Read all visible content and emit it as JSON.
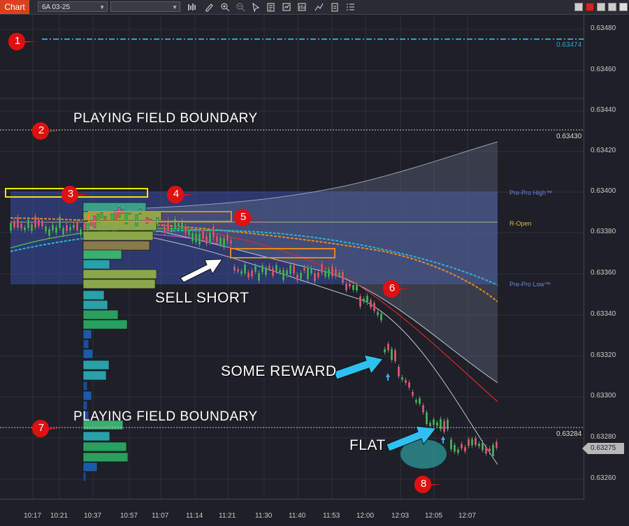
{
  "toolbar": {
    "tab_label": "Chart",
    "instrument": "6A 03-25",
    "template": "",
    "tool_icons": [
      "bar-type-icon",
      "pencil-icon",
      "zoom-in-icon",
      "zoom-out-icon",
      "pointer-icon",
      "data-box-icon",
      "chart-properties-icon",
      "strategies-icon",
      "drawing-objects-icon",
      "templates-icon",
      "list-icon"
    ]
  },
  "y_axis": {
    "labels": [
      "0.63480",
      "0.63460",
      "0.63440",
      "0.63420",
      "0.63400",
      "0.63380",
      "0.63360",
      "0.63340",
      "0.63320",
      "0.63300",
      "0.63280",
      "0.63260"
    ]
  },
  "x_axis": {
    "labels": [
      "10:17",
      "10:21",
      "10:37",
      "10:57",
      "11:07",
      "11:14",
      "11:21",
      "11:30",
      "11:40",
      "11:53",
      "12:00",
      "12:03",
      "12:05",
      "12:07"
    ]
  },
  "price_tags": {
    "top_line": "0.63474",
    "upper_boundary": "0.63430",
    "lower_boundary": "0.63284",
    "last_price": "0.63275"
  },
  "indicator_labels": {
    "pre_pro_high": "Pre-Pro High™",
    "r_open": "R-Open",
    "pre_pro_low": "Pre-Pro Low™"
  },
  "annotations": {
    "upper_boundary": "PLAYING FIELD BOUNDARY",
    "lower_boundary": "PLAYING FIELD BOUNDARY",
    "sell_short": "SELL SHORT",
    "some_reward": "SOME REWARD",
    "flat": "FLAT"
  },
  "markers": [
    "1",
    "2",
    "3",
    "4",
    "5",
    "6",
    "7",
    "8"
  ],
  "colors": {
    "accent": "#d9411e",
    "marker_red": "#e01010",
    "pre_pro_zone": "#3a4fa8",
    "top_line": "#1fa8d8",
    "bull": "#3fbf5a",
    "bear": "#e35a7a"
  }
}
